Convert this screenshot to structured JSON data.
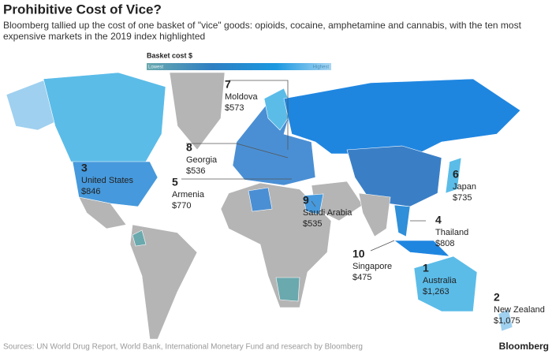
{
  "header": {
    "title": "Prohibitive Cost of Vice?",
    "subtitle": "Bloomberg tallied up the cost of one basket of \"vice\" goods: opioids, cocaine, amphetamine and cannabis, with the ten most expensive markets in the 2019 index highlighted"
  },
  "legend": {
    "title": "Basket cost $",
    "low": "Lowest",
    "high": "Highest"
  },
  "markets": [
    {
      "rank": 7,
      "country": "Moldova",
      "cost": "$573"
    },
    {
      "rank": 8,
      "country": "Georgia",
      "cost": "$536"
    },
    {
      "rank": 5,
      "country": "Armenia",
      "cost": "$770"
    },
    {
      "rank": 3,
      "country": "United States",
      "cost": "$846"
    },
    {
      "rank": 9,
      "country": "Saudi Arabia",
      "cost": "$535"
    },
    {
      "rank": 6,
      "country": "Japan",
      "cost": "$735"
    },
    {
      "rank": 4,
      "country": "Thailand",
      "cost": "$808"
    },
    {
      "rank": 10,
      "country": "Singapore",
      "cost": "$475"
    },
    {
      "rank": 1,
      "country": "Australia",
      "cost": "$1,263"
    },
    {
      "rank": 2,
      "country": "New Zealand",
      "cost": "$1,075"
    }
  ],
  "footer": {
    "source": "Sources: UN World Drug Report, World Bank, International Monetary Fund and research by Bloomberg",
    "brand": "Bloomberg"
  }
}
